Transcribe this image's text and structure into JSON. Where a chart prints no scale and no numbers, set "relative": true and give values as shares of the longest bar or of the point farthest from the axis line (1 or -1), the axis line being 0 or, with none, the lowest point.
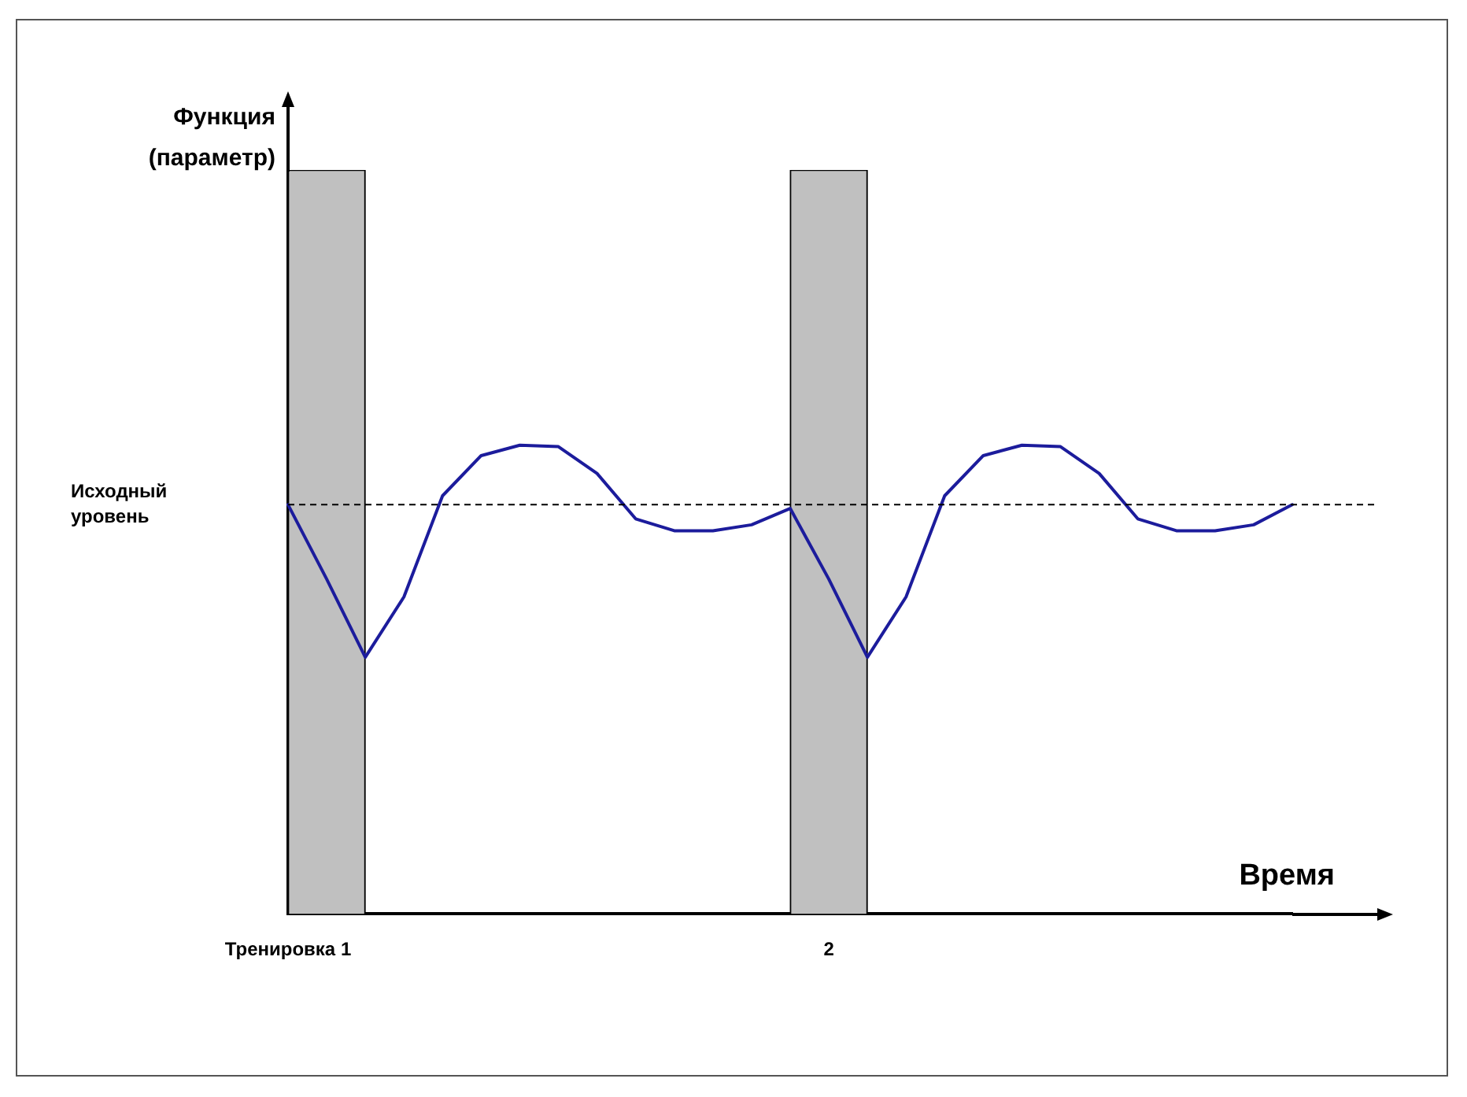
{
  "chart_data": {
    "type": "line",
    "relative": true,
    "xlabel": "Время",
    "ylabel": "Функция (параметр)",
    "grid": false,
    "marker": "none",
    "line_style": "solid",
    "categories": [
      "Тренировка 1",
      null,
      null,
      null,
      null,
      null,
      null,
      null,
      null,
      null,
      null,
      null,
      null,
      null,
      "2",
      null,
      null,
      null,
      null,
      null,
      null,
      null,
      null,
      null,
      null,
      null,
      null
    ],
    "series": [
      {
        "type": "bar",
        "color": "#c0c0c0",
        "values": [
          null,
          1,
          null,
          null,
          null,
          null,
          null,
          null,
          null,
          null,
          null,
          null,
          null,
          null,
          1,
          null,
          null,
          null,
          null,
          null,
          null,
          null,
          null,
          null,
          null,
          null,
          null
        ]
      },
      {
        "color": "#1c1c9c",
        "values": [
          0.55,
          0.45,
          0.345,
          0.426,
          0.562,
          0.616,
          0.63,
          0.628,
          0.592,
          0.531,
          0.515,
          0.515,
          0.523,
          0.545,
          0.45,
          0.345,
          0.426,
          0.562,
          0.616,
          0.63,
          0.628,
          0.592,
          0.531,
          0.515,
          0.515,
          0.523,
          0.55
        ]
      }
    ],
    "ref_lines": [
      {
        "axis": "y",
        "value": 0.55,
        "label": "Исходный уровень",
        "color": "#000000",
        "line_style": "dashed"
      }
    ]
  }
}
